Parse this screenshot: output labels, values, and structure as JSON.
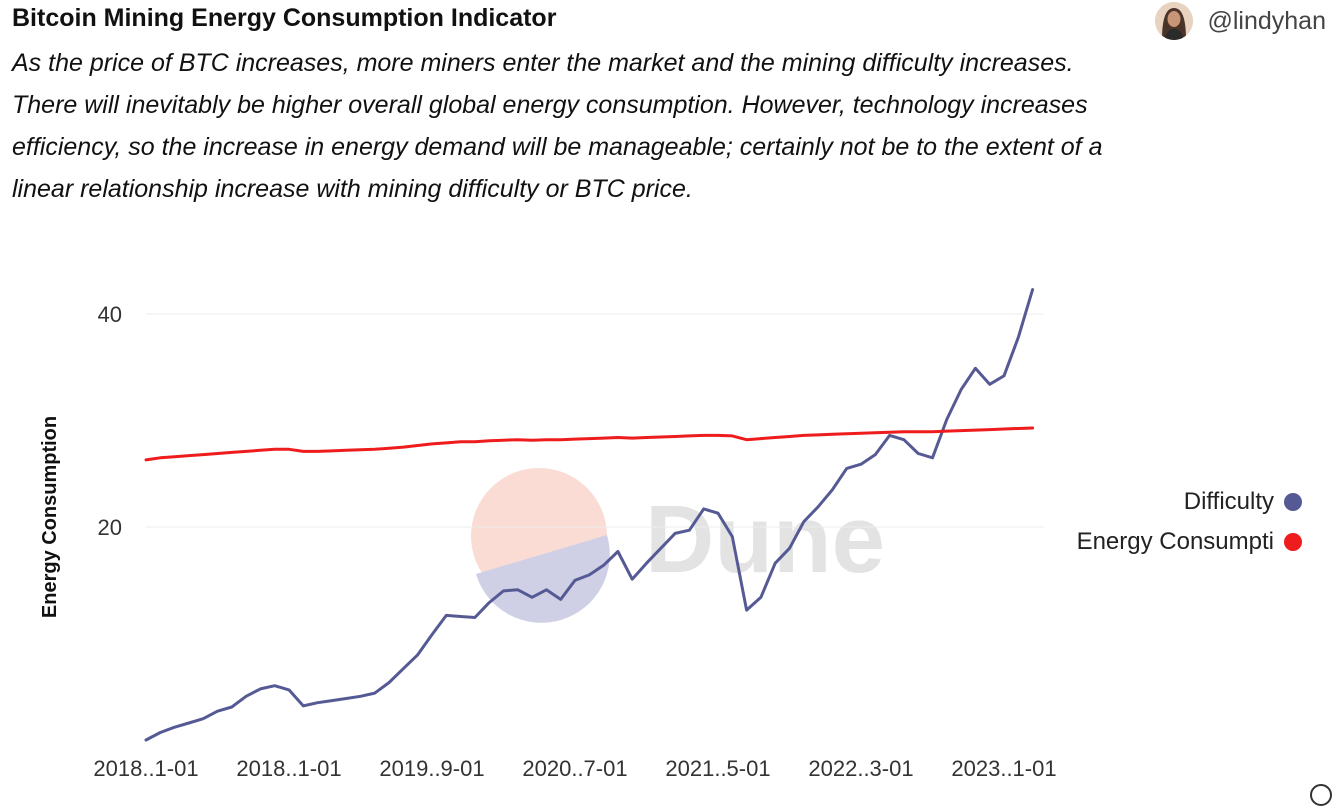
{
  "header": {
    "title": "Bitcoin Mining Energy Consumption Indicator",
    "subtitle": "As the price of BTC increases, more miners enter the market and the mining difficulty increases. There will inevitably be higher overall global energy consumption. However, technology increases efficiency, so the increase in energy demand will be manageable; certainly not be to the extent of a linear relationship increase with mining difficulty or BTC price.",
    "author_handle": "@lindyhan"
  },
  "colors": {
    "difficulty": "#565a94",
    "energy": "#ee1c1c",
    "grid": "#ececec",
    "tick_text": "#333333",
    "watermark_text": "#e3e3e3",
    "watermark_circle": "#fbdcd5",
    "watermark_wedge": "#cfd0e6"
  },
  "watermark": {
    "text": "Dune"
  },
  "chart_data": {
    "type": "line",
    "title": "Bitcoin Mining Energy Consumption Indicator",
    "xlabel": "",
    "ylabel": "Energy Consumption",
    "ylim": [
      0,
      45
    ],
    "yticks": [
      20,
      40
    ],
    "grid": true,
    "legend_position": "right",
    "x_tick_labels": [
      "2018..1-01",
      "2018..1-01",
      "2019..9-01",
      "2020..7-01",
      "2021..5-01",
      "2022..3-01",
      "2023..1-01"
    ],
    "x_tick_months": [
      0,
      10,
      20,
      30,
      40,
      50,
      60
    ],
    "x_months": [
      0,
      1,
      2,
      3,
      4,
      5,
      6,
      7,
      8,
      9,
      10,
      11,
      12,
      13,
      14,
      15,
      16,
      17,
      18,
      19,
      20,
      21,
      22,
      23,
      24,
      25,
      26,
      27,
      28,
      29,
      30,
      31,
      32,
      33,
      34,
      35,
      36,
      37,
      38,
      39,
      40,
      41,
      42,
      43,
      44,
      45,
      46,
      47,
      48,
      49,
      50,
      51,
      52,
      53,
      54,
      55,
      56,
      57,
      58,
      59,
      60,
      61,
      62
    ],
    "series": [
      {
        "name": "Difficulty",
        "color": "#565a94",
        "values": [
          0.0,
          0.7,
          1.2,
          1.6,
          2.0,
          2.7,
          3.1,
          4.1,
          4.8,
          5.1,
          4.7,
          3.2,
          3.5,
          3.7,
          3.9,
          4.1,
          4.4,
          5.4,
          6.7,
          8.0,
          9.9,
          11.7,
          11.6,
          11.5,
          12.9,
          14.0,
          14.1,
          13.4,
          14.1,
          13.2,
          15.0,
          15.5,
          16.4,
          17.7,
          15.1,
          16.6,
          18.0,
          19.4,
          19.7,
          21.7,
          21.3,
          19.1,
          12.2,
          13.4,
          16.6,
          18.0,
          20.5,
          21.9,
          23.5,
          25.5,
          25.9,
          26.8,
          28.6,
          28.2,
          26.9,
          26.5,
          30.1,
          32.9,
          34.9,
          33.4,
          34.2,
          37.8,
          42.3
        ]
      },
      {
        "name": "Energy Consumpti",
        "color": "#ee1c1c",
        "values": [
          26.3,
          26.5,
          26.6,
          26.7,
          26.8,
          26.9,
          27.0,
          27.1,
          27.2,
          27.3,
          27.3,
          27.1,
          27.1,
          27.15,
          27.2,
          27.25,
          27.3,
          27.4,
          27.5,
          27.65,
          27.8,
          27.9,
          28.0,
          28.0,
          28.1,
          28.15,
          28.2,
          28.15,
          28.2,
          28.2,
          28.25,
          28.3,
          28.35,
          28.4,
          28.35,
          28.4,
          28.45,
          28.5,
          28.55,
          28.6,
          28.6,
          28.55,
          28.2,
          28.3,
          28.4,
          28.5,
          28.6,
          28.65,
          28.7,
          28.75,
          28.8,
          28.85,
          28.9,
          28.95,
          28.95,
          28.95,
          29.0,
          29.05,
          29.1,
          29.15,
          29.2,
          29.25,
          29.3
        ]
      }
    ]
  }
}
